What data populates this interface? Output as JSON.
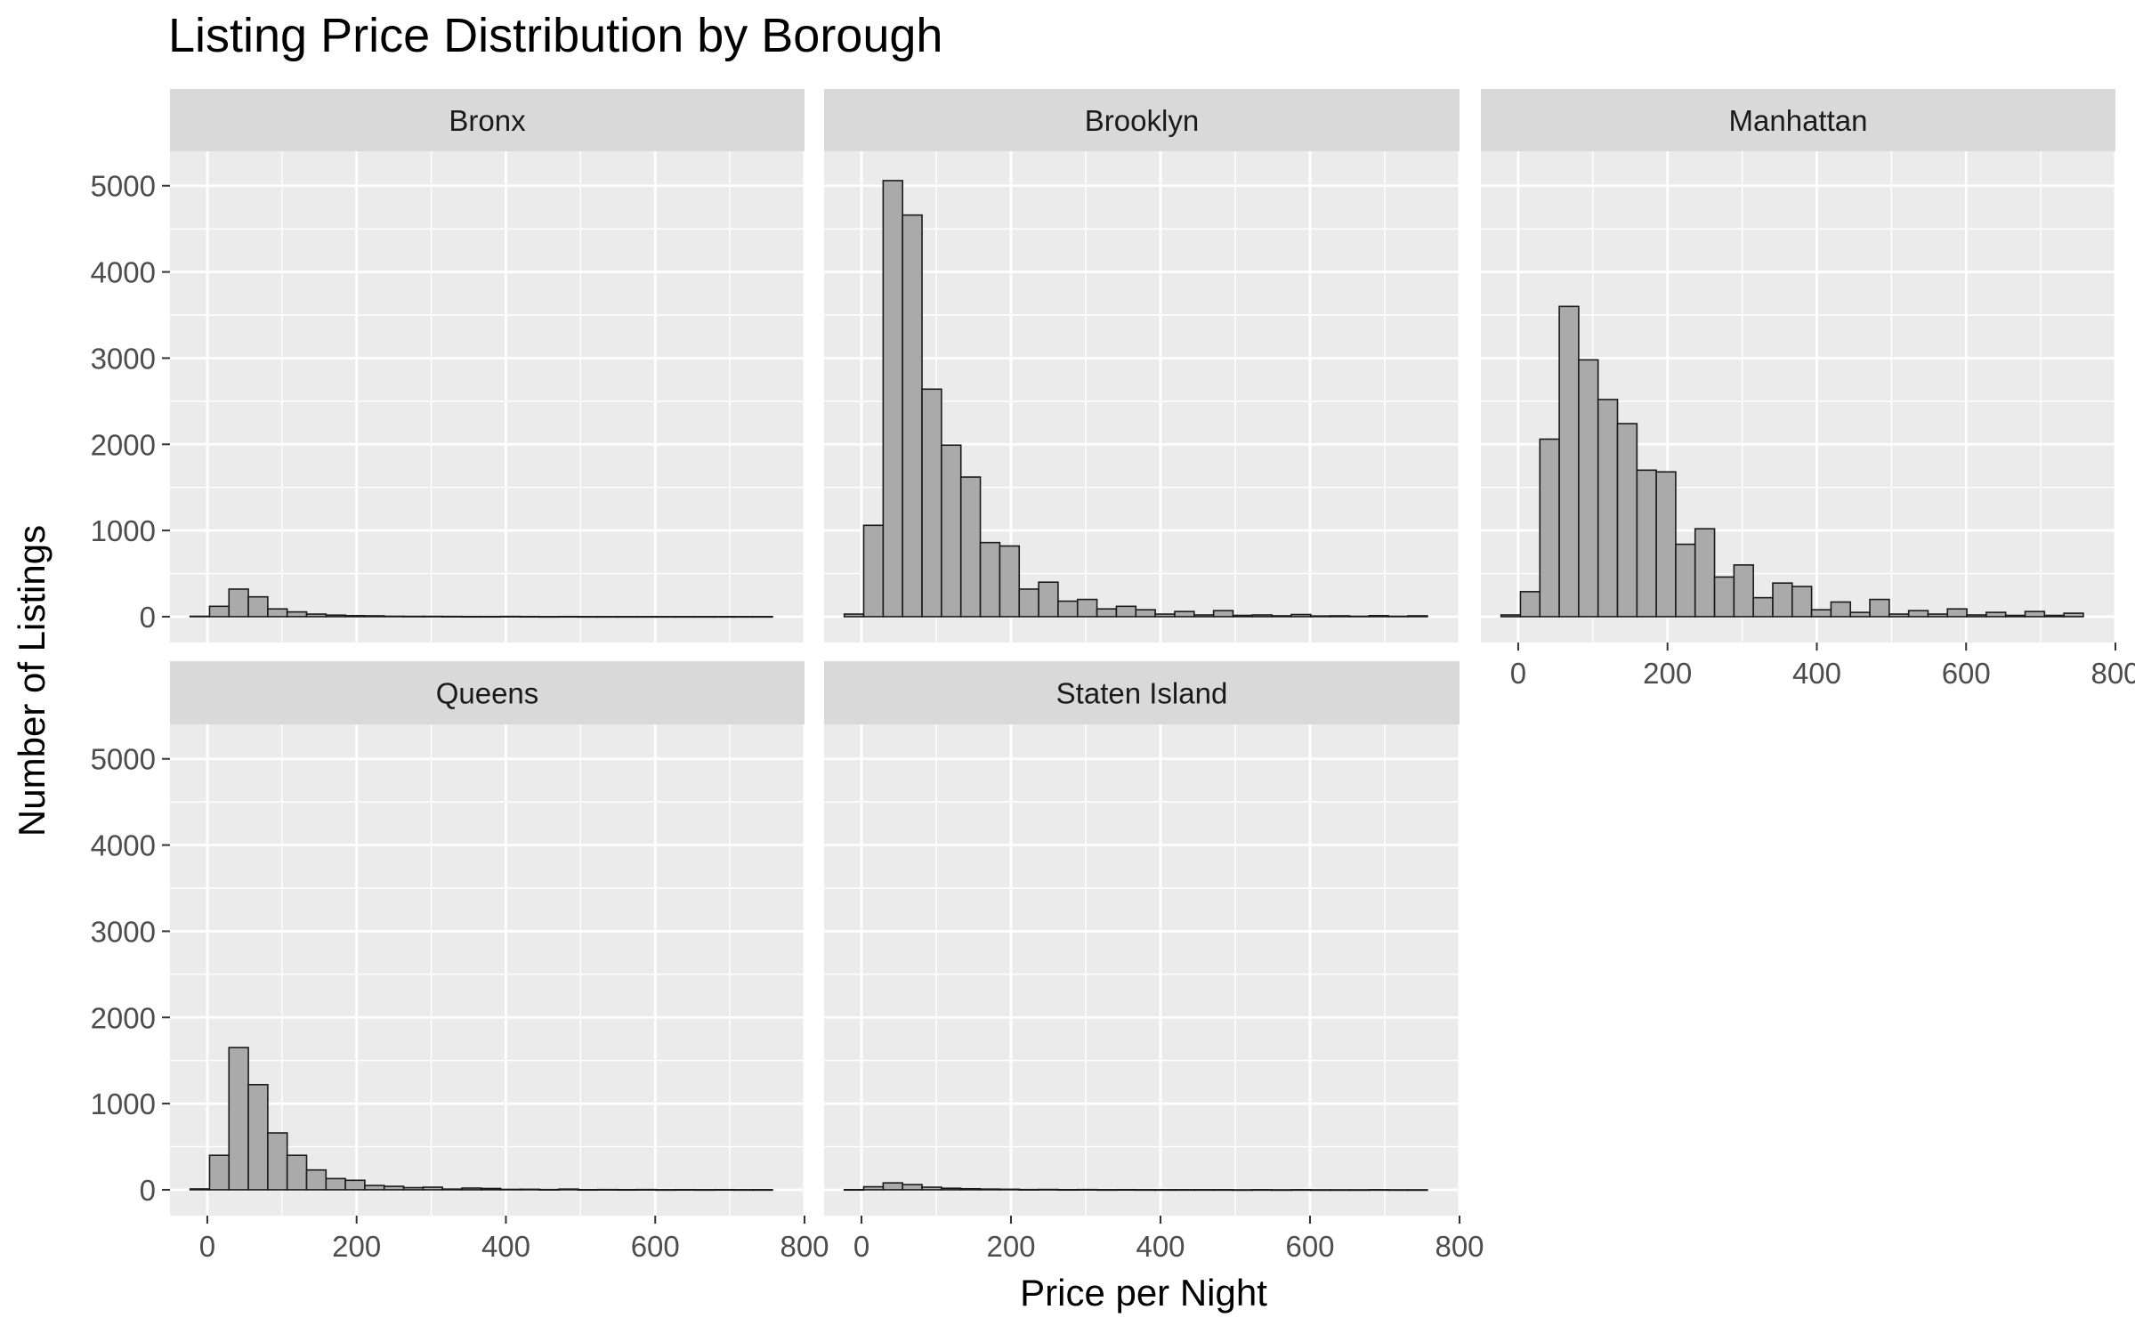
{
  "chart_data": {
    "type": "bar",
    "title": "Listing Price Distribution by Borough",
    "xlabel": "Price per Night",
    "ylabel": "Number of Listings",
    "facet_layout": "3 columns, 2 rows",
    "xlim": [
      -50,
      800
    ],
    "ylim": [
      -300,
      5400
    ],
    "x_ticks": [
      0,
      200,
      400,
      600,
      800
    ],
    "y_ticks": [
      0,
      1000,
      2000,
      3000,
      4000,
      5000
    ],
    "bin_width": 26,
    "bin_centers": [
      -10,
      16,
      42,
      68,
      94,
      120,
      146,
      172,
      198,
      224,
      250,
      276,
      302,
      328,
      354,
      380,
      406,
      432,
      458,
      484,
      510,
      536,
      562,
      588,
      614,
      640,
      666,
      692,
      718,
      744
    ],
    "grid": true,
    "legend": "none",
    "colors": {
      "panel_bg": "#ebebeb",
      "strip_bg": "#d9d9d9",
      "gridline": "#ffffff",
      "bar_fill": "#aaaaaa",
      "bar_outline": "#1a1a1a",
      "tick_text": "#4d4d4d"
    },
    "series": [
      {
        "name": "Bronx",
        "values": [
          5,
          120,
          320,
          230,
          90,
          55,
          30,
          18,
          12,
          10,
          5,
          4,
          4,
          3,
          2,
          2,
          3,
          2,
          1,
          2,
          1,
          1,
          1,
          1,
          1,
          1,
          1,
          1,
          1,
          1
        ]
      },
      {
        "name": "Brooklyn",
        "values": [
          30,
          1060,
          5060,
          4660,
          2640,
          1990,
          1620,
          860,
          820,
          320,
          400,
          180,
          200,
          90,
          120,
          80,
          30,
          60,
          20,
          70,
          15,
          20,
          10,
          25,
          8,
          10,
          5,
          12,
          5,
          10
        ]
      },
      {
        "name": "Manhattan",
        "values": [
          20,
          290,
          2060,
          3600,
          2980,
          2520,
          2240,
          1700,
          1680,
          840,
          1020,
          460,
          600,
          220,
          390,
          350,
          80,
          170,
          50,
          200,
          30,
          70,
          30,
          90,
          20,
          50,
          15,
          60,
          15,
          40
        ]
      },
      {
        "name": "Queens",
        "values": [
          10,
          400,
          1650,
          1220,
          660,
          400,
          230,
          130,
          110,
          50,
          40,
          25,
          30,
          8,
          20,
          15,
          5,
          6,
          3,
          8,
          2,
          3,
          2,
          3,
          1,
          2,
          1,
          2,
          1,
          1
        ]
      },
      {
        "name": "Staten Island",
        "values": [
          2,
          35,
          80,
          60,
          30,
          18,
          12,
          8,
          6,
          3,
          4,
          2,
          3,
          1,
          2,
          1,
          1,
          1,
          1,
          1,
          0,
          1,
          0,
          1,
          0,
          0,
          0,
          1,
          0,
          0
        ]
      }
    ]
  }
}
